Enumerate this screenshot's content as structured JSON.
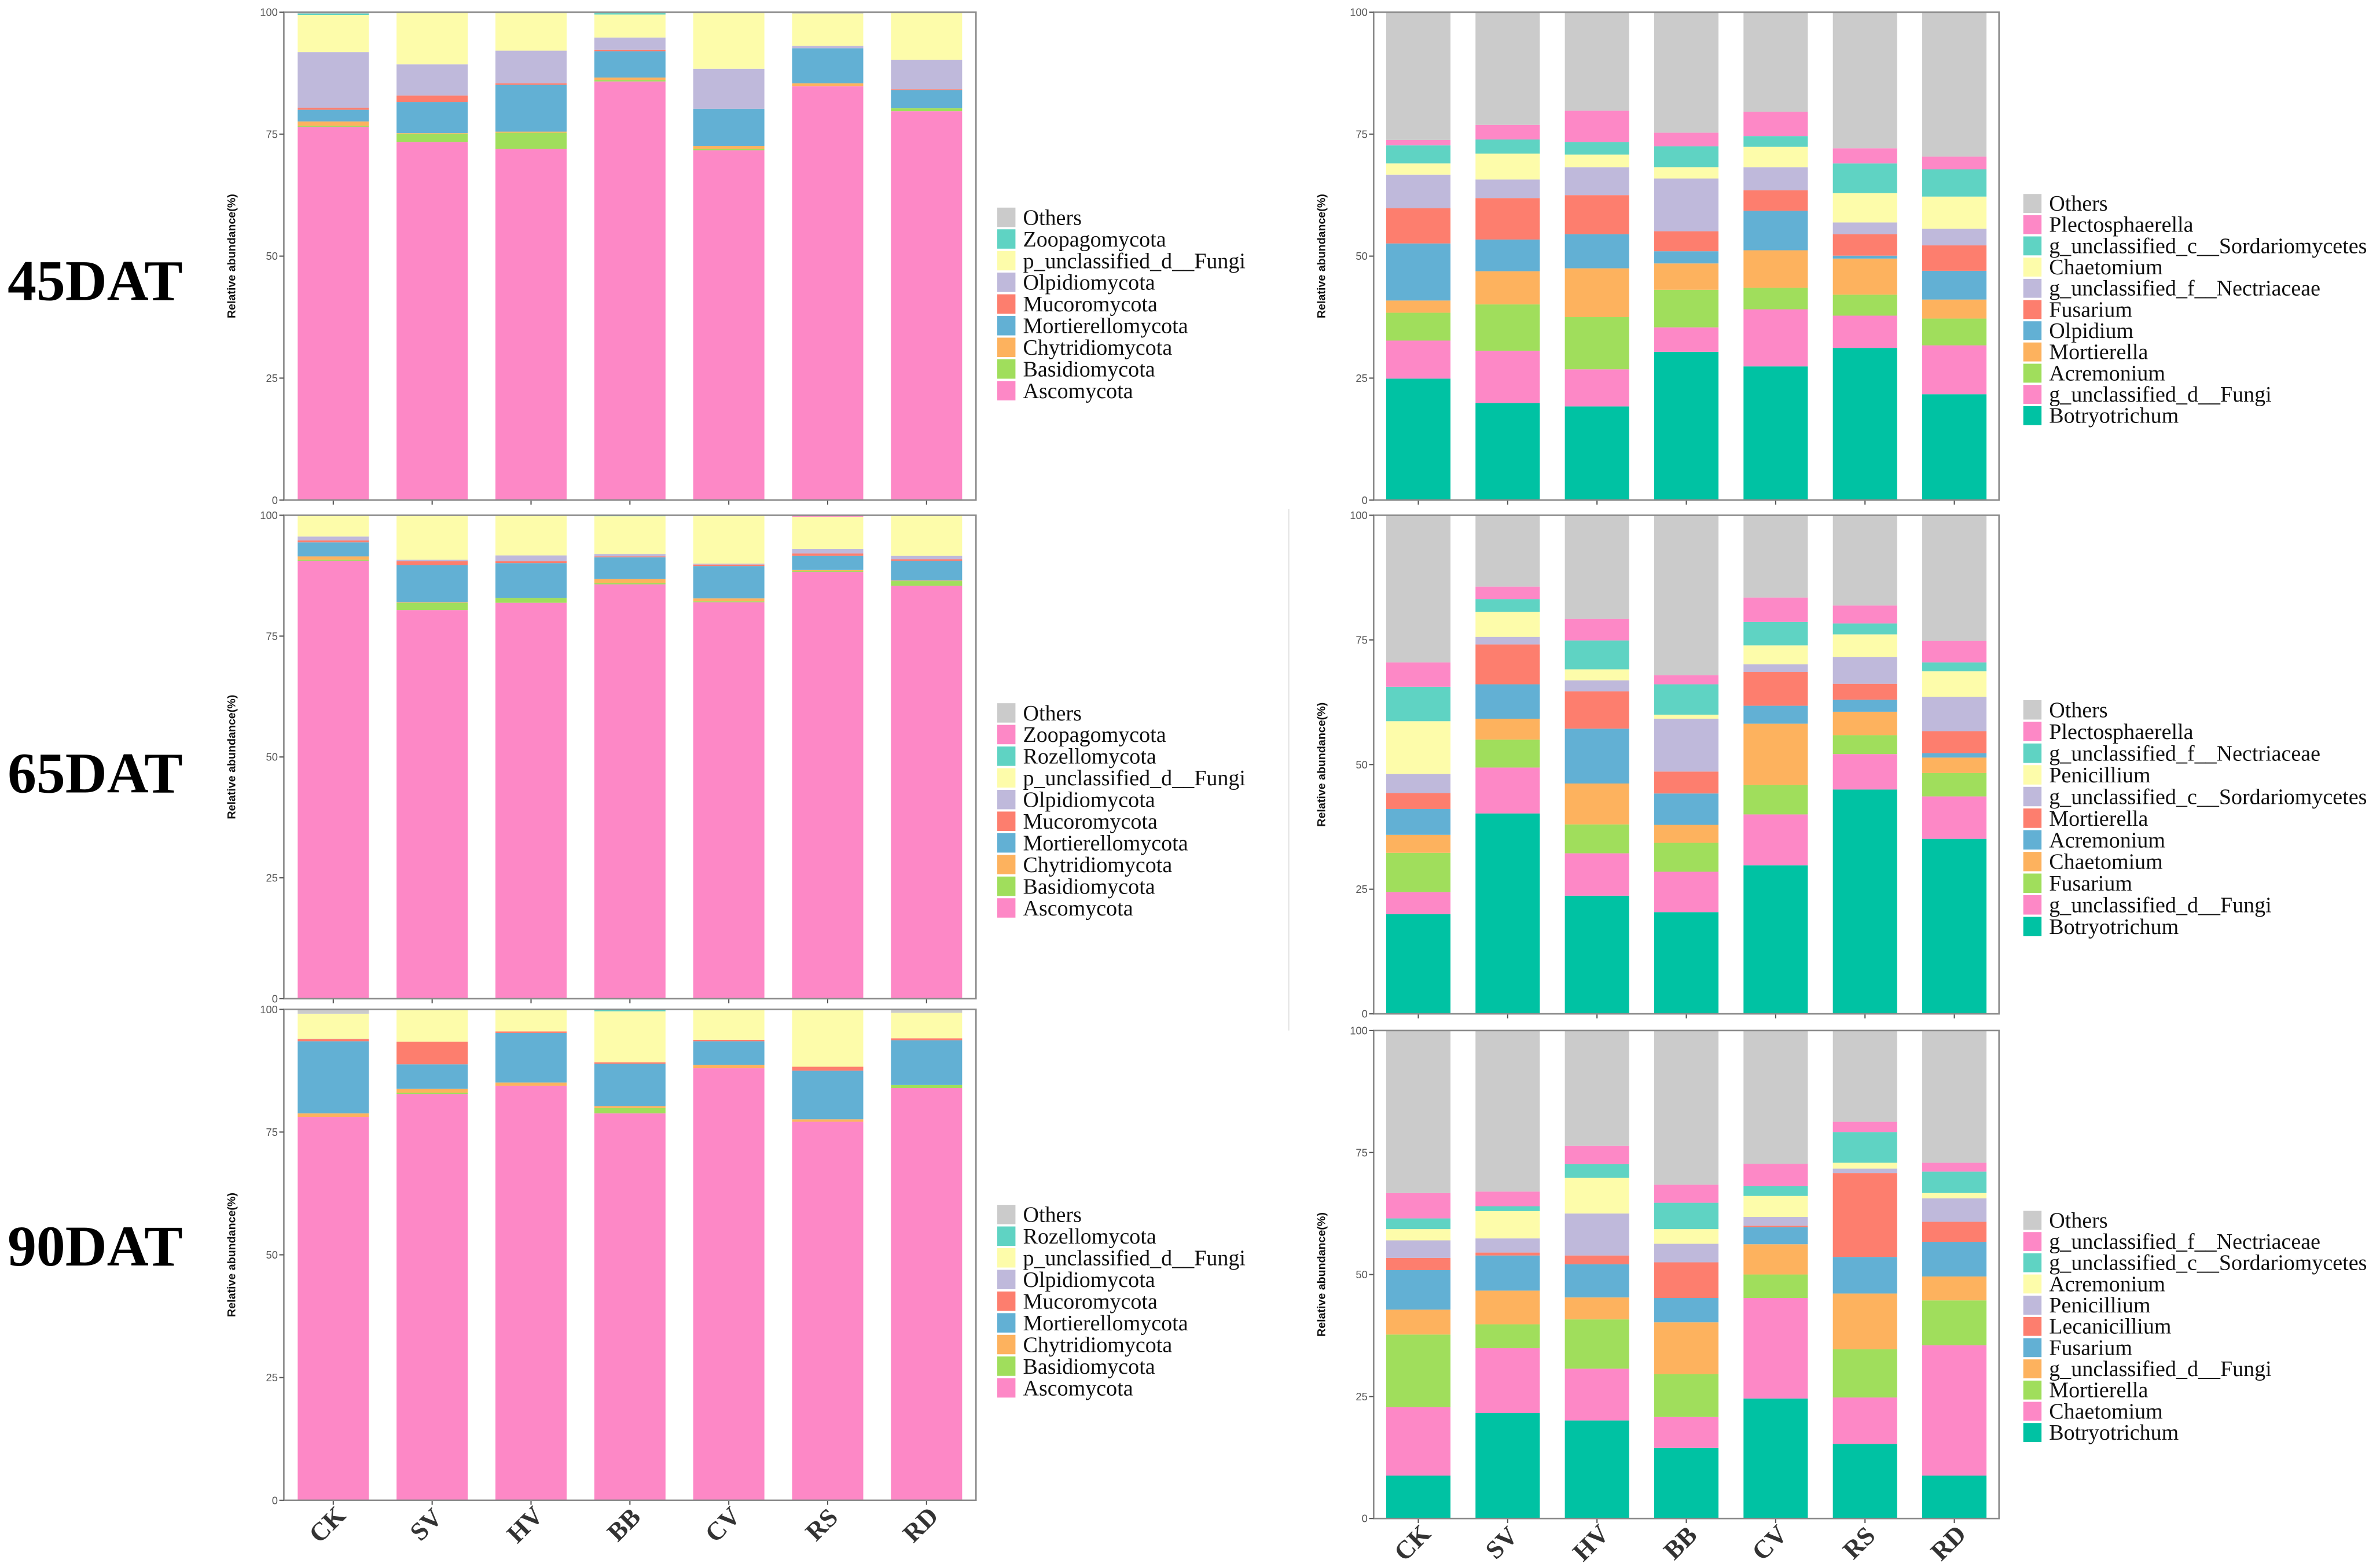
{
  "row_labels": [
    "45DAT",
    "65DAT",
    "90DAT"
  ],
  "categories": [
    "CK",
    "SV",
    "HV",
    "BB",
    "CV",
    "RS",
    "RD"
  ],
  "chart_data": [
    {
      "type": "bar",
      "stacked": true,
      "level": "phylum",
      "stage": "45DAT",
      "ylabel": "Relative abundance(%)",
      "ylim": [
        0,
        100
      ],
      "yticks": [
        "0",
        "25",
        "50",
        "75",
        "100"
      ],
      "legend_position": "right",
      "series": [
        {
          "name": "Ascomycota",
          "color": "#fd88c6",
          "values": [
            76.5,
            73.4,
            72.0,
            85.8,
            71.7,
            84.8,
            79.7
          ]
        },
        {
          "name": "Basidiomycota",
          "color": "#a0de5c",
          "values": [
            0.2,
            1.7,
            3.3,
            0.3,
            0.3,
            0,
            0.6
          ]
        },
        {
          "name": "Chytridiomycota",
          "color": "#fdb25e",
          "values": [
            0.9,
            0.1,
            0.2,
            0.5,
            0.6,
            0.6,
            0
          ]
        },
        {
          "name": "Mortierellomycota",
          "color": "#62b0d4",
          "values": [
            2.4,
            6.4,
            9.6,
            5.4,
            7.6,
            7.2,
            3.7
          ]
        },
        {
          "name": "Mucoromycota",
          "color": "#fd7e6e",
          "values": [
            0.4,
            1.3,
            0.3,
            0.3,
            0,
            0,
            0.2
          ]
        },
        {
          "name": "Olpidiomycota",
          "color": "#bfb9db",
          "values": [
            11.4,
            6.4,
            6.7,
            2.5,
            8.2,
            0.5,
            6.0
          ]
        },
        {
          "name": "p_unclassified_d__Fungi",
          "color": "#fdfcaa",
          "values": [
            7.6,
            10.6,
            7.7,
            4.7,
            11.4,
            6.6,
            9.6
          ]
        },
        {
          "name": "Zoopagomycota",
          "color": "#5fd3c3",
          "values": [
            0.3,
            0,
            0,
            0.3,
            0,
            0,
            0
          ]
        },
        {
          "name": "Others",
          "color": "#cbcbcb",
          "values": [
            0.3,
            0.1,
            0.2,
            0.2,
            0.2,
            0.3,
            0.2
          ]
        }
      ]
    },
    {
      "type": "bar",
      "stacked": true,
      "level": "genus",
      "stage": "45DAT",
      "ylabel": "Relative abundance(%)",
      "ylim": [
        0,
        100
      ],
      "yticks": [
        "0",
        "25",
        "50",
        "75",
        "100"
      ],
      "legend_position": "right",
      "series": [
        {
          "name": "Botryotrichum",
          "color": "#00c2a3",
          "values": [
            24.9,
            19.9,
            19.2,
            30.4,
            27.4,
            31.2,
            21.7
          ]
        },
        {
          "name": "g_unclassified_d__Fungi",
          "color": "#fd88c6",
          "values": [
            7.8,
            10.7,
            7.6,
            5.0,
            11.7,
            6.6,
            10.0
          ]
        },
        {
          "name": "Acremonium",
          "color": "#a0de5c",
          "values": [
            5.7,
            9.5,
            10.7,
            7.7,
            4.4,
            4.3,
            5.5
          ]
        },
        {
          "name": "Mortierella",
          "color": "#fdb25e",
          "values": [
            2.5,
            6.8,
            10.0,
            5.4,
            7.7,
            7.4,
            3.9
          ]
        },
        {
          "name": "Olpidium",
          "color": "#62b0d4",
          "values": [
            11.7,
            6.5,
            7.0,
            2.5,
            8.1,
            0.6,
            5.9
          ]
        },
        {
          "name": "Fusarium",
          "color": "#fd7e6e",
          "values": [
            7.2,
            8.5,
            8.0,
            4.1,
            4.2,
            4.4,
            5.2
          ]
        },
        {
          "name": "g_unclassified_f__Nectriaceae",
          "color": "#bfb9db",
          "values": [
            6.9,
            3.8,
            5.7,
            10.8,
            4.7,
            2.4,
            3.4
          ]
        },
        {
          "name": "Chaetomium",
          "color": "#fdfcaa",
          "values": [
            2.3,
            5.3,
            2.6,
            2.3,
            4.2,
            6.0,
            6.6
          ]
        },
        {
          "name": "g_unclassified_c__Sordariomycetes",
          "color": "#5fd3c3",
          "values": [
            3.7,
            2.9,
            2.6,
            4.3,
            2.2,
            6.1,
            5.6
          ]
        },
        {
          "name": "Plectosphaerella",
          "color": "#fd88c6",
          "values": [
            1.1,
            3.0,
            6.4,
            2.8,
            5.0,
            3.1,
            2.6
          ]
        },
        {
          "name": "Others",
          "color": "#cbcbcb",
          "values": [
            26.2,
            23.1,
            20.2,
            24.7,
            20.4,
            27.9,
            29.6
          ]
        }
      ]
    },
    {
      "type": "bar",
      "stacked": true,
      "level": "phylum",
      "stage": "65DAT",
      "ylabel": "Relative abundance(%)",
      "ylim": [
        0,
        100
      ],
      "yticks": [
        "0",
        "25",
        "50",
        "75",
        "100"
      ],
      "legend_position": "right",
      "series": [
        {
          "name": "Ascomycota",
          "color": "#fd88c6",
          "values": [
            90.6,
            80.4,
            81.9,
            85.7,
            82.0,
            88.3,
            85.4
          ]
        },
        {
          "name": "Basidiomycota",
          "color": "#a0de5c",
          "values": [
            0.2,
            1.5,
            1.0,
            0.3,
            0.2,
            0.2,
            1.0
          ]
        },
        {
          "name": "Chytridiomycota",
          "color": "#fdb25e",
          "values": [
            0.7,
            0.1,
            0,
            0.8,
            0.6,
            0.2,
            0.1
          ]
        },
        {
          "name": "Mortierellomycota",
          "color": "#62b0d4",
          "values": [
            2.9,
            7.7,
            7.2,
            4.5,
            6.7,
            2.9,
            4.1
          ]
        },
        {
          "name": "Mucoromycota",
          "color": "#fd7e6e",
          "values": [
            0.4,
            0.8,
            0.4,
            0.2,
            0.3,
            0.5,
            0.3
          ]
        },
        {
          "name": "Olpidiomycota",
          "color": "#bfb9db",
          "values": [
            0.8,
            0.3,
            1.2,
            0.5,
            0.2,
            0.9,
            0.7
          ]
        },
        {
          "name": "p_unclassified_d__Fungi",
          "color": "#fdfcaa",
          "values": [
            4.4,
            9.1,
            8.3,
            7.8,
            10.0,
            6.7,
            8.4
          ]
        },
        {
          "name": "Rozellomycota",
          "color": "#5fd3c3",
          "values": [
            0,
            0,
            0,
            0.2,
            0,
            0,
            0
          ]
        },
        {
          "name": "Zoopagomycota",
          "color": "#fd88c6",
          "values": [
            0,
            0,
            0,
            0,
            0,
            0.3,
            0
          ]
        },
        {
          "name": "Others",
          "color": "#cbcbcb",
          "values": [
            0,
            0.1,
            0,
            0,
            0,
            0,
            0
          ]
        }
      ]
    },
    {
      "type": "bar",
      "stacked": true,
      "level": "genus",
      "stage": "65DAT",
      "ylabel": "Relative abundance(%)",
      "ylim": [
        0,
        100
      ],
      "yticks": [
        "0",
        "25",
        "50",
        "75",
        "100"
      ],
      "legend_position": "right",
      "series": [
        {
          "name": "Botryotrichum",
          "color": "#00c2a3",
          "values": [
            20.0,
            40.2,
            23.7,
            20.4,
            29.8,
            45.0,
            35.1
          ]
        },
        {
          "name": "g_unclassified_d__Fungi",
          "color": "#fd88c6",
          "values": [
            4.4,
            9.2,
            8.5,
            8.1,
            10.2,
            7.1,
            8.5
          ]
        },
        {
          "name": "Fusarium",
          "color": "#a0de5c",
          "values": [
            7.9,
            5.6,
            5.8,
            5.8,
            5.9,
            3.8,
            4.7
          ]
        },
        {
          "name": "Chaetomium",
          "color": "#fdb25e",
          "values": [
            3.6,
            4.2,
            8.2,
            3.6,
            12.3,
            4.7,
            3.1
          ]
        },
        {
          "name": "Acremonium",
          "color": "#62b0d4",
          "values": [
            5.2,
            6.9,
            11.0,
            6.3,
            3.6,
            2.4,
            0.9
          ]
        },
        {
          "name": "Mortierella",
          "color": "#fd7e6e",
          "values": [
            3.2,
            8.0,
            7.5,
            4.4,
            6.8,
            3.2,
            4.4
          ]
        },
        {
          "name": "g_unclassified_c__Sordariomycetes",
          "color": "#bfb9db",
          "values": [
            3.8,
            1.5,
            2.2,
            10.6,
            1.5,
            5.4,
            6.9
          ]
        },
        {
          "name": "Penicillium",
          "color": "#fdfcaa",
          "values": [
            10.6,
            5.0,
            2.2,
            0.8,
            3.8,
            4.5,
            5.1
          ]
        },
        {
          "name": "g_unclassified_f__Nectriaceae",
          "color": "#5fd3c3",
          "values": [
            6.9,
            2.6,
            5.8,
            6.1,
            4.7,
            2.2,
            1.8
          ]
        },
        {
          "name": "Plectosphaerella",
          "color": "#fd88c6",
          "values": [
            4.9,
            2.5,
            4.3,
            1.8,
            4.9,
            3.6,
            4.3
          ]
        },
        {
          "name": "Others",
          "color": "#cbcbcb",
          "values": [
            29.5,
            14.3,
            20.8,
            32.1,
            16.5,
            18.1,
            25.2
          ]
        }
      ]
    },
    {
      "type": "bar",
      "stacked": true,
      "level": "phylum",
      "stage": "90DAT",
      "ylabel": "Relative abundance(%)",
      "ylim": [
        0,
        100
      ],
      "yticks": [
        "0",
        "25",
        "50",
        "75",
        "100"
      ],
      "legend_position": "right",
      "series": [
        {
          "name": "Ascomycota",
          "color": "#fd88c6",
          "values": [
            78.1,
            82.7,
            84.4,
            78.8,
            88.0,
            77.1,
            84.0
          ]
        },
        {
          "name": "Basidiomycota",
          "color": "#a0de5c",
          "values": [
            0,
            0.3,
            0,
            1.1,
            0,
            0,
            0.6
          ]
        },
        {
          "name": "Chytridiomycota",
          "color": "#fdb25e",
          "values": [
            0.7,
            0.8,
            0.7,
            0.4,
            0.7,
            0.5,
            0
          ]
        },
        {
          "name": "Mortierellomycota",
          "color": "#62b0d4",
          "values": [
            14.7,
            5.0,
            10.1,
            8.6,
            4.8,
            9.9,
            9.1
          ]
        },
        {
          "name": "Mucoromycota",
          "color": "#fd7e6e",
          "values": [
            0.4,
            4.6,
            0.3,
            0.3,
            0.3,
            0.8,
            0.4
          ]
        },
        {
          "name": "Olpidiomycota",
          "color": "#bfb9db",
          "values": [
            0.1,
            0,
            0,
            0,
            0,
            0,
            0
          ]
        },
        {
          "name": "p_unclassified_d__Fungi",
          "color": "#fdfcaa",
          "values": [
            5.1,
            6.6,
            4.5,
            10.4,
            6.2,
            11.5,
            5.2
          ]
        },
        {
          "name": "Rozellomycota",
          "color": "#5fd3c3",
          "values": [
            0,
            0,
            0,
            0.4,
            0,
            0,
            0
          ]
        },
        {
          "name": "Others",
          "color": "#cbcbcb",
          "values": [
            0.9,
            0,
            0,
            0,
            0,
            0.2,
            0.7
          ]
        }
      ]
    },
    {
      "type": "bar",
      "stacked": true,
      "level": "genus",
      "stage": "90DAT",
      "ylabel": "Relative abundance(%)",
      "ylim": [
        0,
        100
      ],
      "yticks": [
        "0",
        "25",
        "50",
        "75",
        "100"
      ],
      "legend_position": "right",
      "series": [
        {
          "name": "Botryotrichum",
          "color": "#00c2a3",
          "values": [
            8.8,
            21.6,
            20.1,
            14.5,
            24.6,
            15.3,
            8.8
          ]
        },
        {
          "name": "Chaetomium",
          "color": "#fd88c6",
          "values": [
            14.0,
            13.3,
            10.6,
            6.3,
            20.6,
            9.5,
            26.7
          ]
        },
        {
          "name": "Mortierella",
          "color": "#a0de5c",
          "values": [
            14.9,
            4.9,
            10.1,
            8.8,
            4.8,
            9.9,
            9.2
          ]
        },
        {
          "name": "g_unclassified_d__Fungi",
          "color": "#fdb25e",
          "values": [
            5.1,
            6.9,
            4.5,
            10.6,
            6.2,
            11.4,
            4.9
          ]
        },
        {
          "name": "Fusarium",
          "color": "#62b0d4",
          "values": [
            8.1,
            7.2,
            6.8,
            5.0,
            3.5,
            7.5,
            7.1
          ]
        },
        {
          "name": "Lecanicillium",
          "color": "#fd7e6e",
          "values": [
            2.5,
            0.6,
            1.8,
            7.3,
            0.3,
            17.2,
            4.1
          ]
        },
        {
          "name": "Penicillium",
          "color": "#bfb9db",
          "values": [
            3.6,
            2.9,
            8.6,
            3.8,
            1.8,
            0.9,
            4.8
          ]
        },
        {
          "name": "Acremonium",
          "color": "#fdfcaa",
          "values": [
            2.3,
            5.6,
            7.3,
            3.0,
            4.3,
            1.2,
            1.1
          ]
        },
        {
          "name": "g_unclassified_c__Sordariomycetes",
          "color": "#5fd3c3",
          "values": [
            2.2,
            1.0,
            2.8,
            5.4,
            2.0,
            6.3,
            4.4
          ]
        },
        {
          "name": "g_unclassified_f__Nectriaceae",
          "color": "#fd88c6",
          "values": [
            5.2,
            3.0,
            3.8,
            3.7,
            4.6,
            2.1,
            1.8
          ]
        },
        {
          "name": "Others",
          "color": "#cbcbcb",
          "values": [
            33.3,
            33.0,
            23.6,
            31.6,
            27.3,
            18.7,
            27.1
          ]
        }
      ]
    }
  ]
}
